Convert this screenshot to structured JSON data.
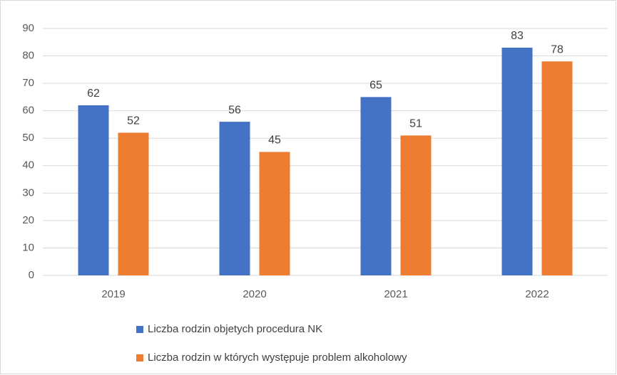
{
  "chart_data": {
    "type": "bar",
    "categories": [
      "2019",
      "2020",
      "2021",
      "2022"
    ],
    "series": [
      {
        "name": "Liczba rodzin objetych procedura NK",
        "color": "#4472c4",
        "values": [
          62,
          56,
          65,
          83
        ]
      },
      {
        "name": "Liczba rodzin w których występuje problem alkoholowy",
        "color": "#ed7d31",
        "values": [
          52,
          45,
          51,
          78
        ]
      }
    ],
    "ylim": [
      0,
      90
    ],
    "yticks": [
      0,
      10,
      20,
      30,
      40,
      50,
      60,
      70,
      80,
      90
    ],
    "grid": true,
    "legend": "bottom"
  }
}
